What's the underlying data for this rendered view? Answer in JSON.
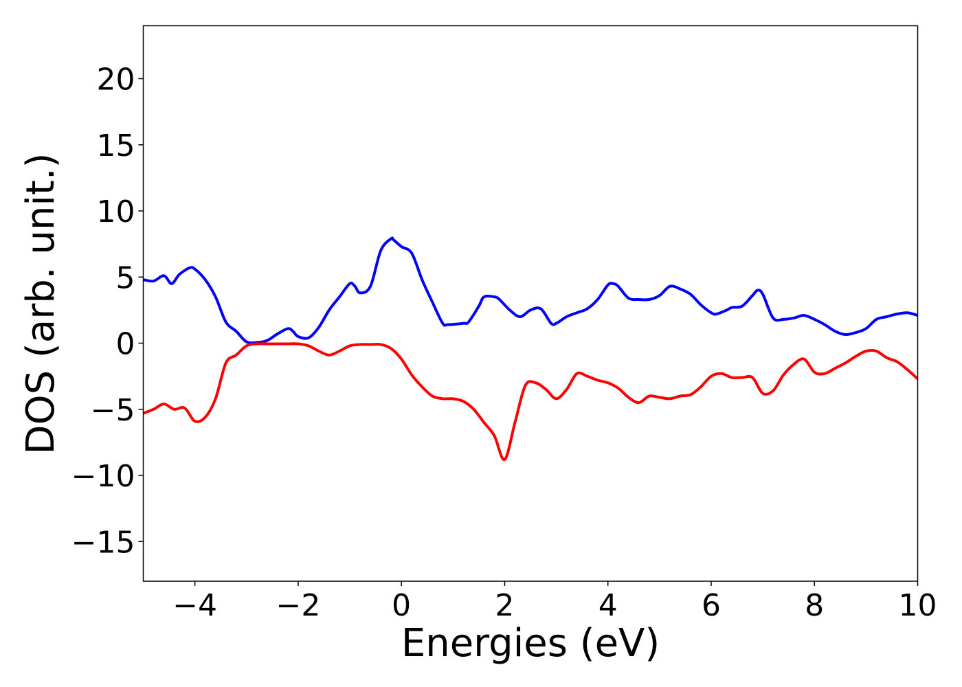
{
  "chart_data": {
    "type": "line",
    "title": "",
    "xlabel": "Energies (eV)",
    "ylabel": "DOS (arb. unit.)",
    "xlim": [
      -5,
      10
    ],
    "ylim": [
      -18,
      24
    ],
    "grid": false,
    "xticks": [
      -4,
      -2,
      0,
      2,
      4,
      6,
      8,
      10
    ],
    "xtick_labels": [
      "−4",
      "−2",
      "0",
      "2",
      "4",
      "6",
      "8",
      "10"
    ],
    "yticks": [
      -15,
      -10,
      -5,
      0,
      5,
      10,
      15,
      20
    ],
    "ytick_labels": [
      "−15",
      "−10",
      "−5",
      "0",
      "5",
      "10",
      "15",
      "20"
    ],
    "series": [
      {
        "color": "#0000ff",
        "x": [
          -5.0,
          -4.8,
          -4.6,
          -4.45,
          -4.3,
          -4.1,
          -4.0,
          -3.8,
          -3.6,
          -3.4,
          -3.2,
          -3.0,
          -2.8,
          -2.6,
          -2.4,
          -2.2,
          -2.1,
          -2.0,
          -1.8,
          -1.6,
          -1.4,
          -1.2,
          -1.0,
          -0.9,
          -0.8,
          -0.6,
          -0.4,
          -0.2,
          -0.15,
          0.0,
          0.2,
          0.4,
          0.6,
          0.8,
          0.9,
          1.2,
          1.3,
          1.5,
          1.6,
          1.8,
          1.9,
          2.1,
          2.3,
          2.5,
          2.7,
          2.9,
          3.0,
          3.2,
          3.4,
          3.6,
          3.8,
          4.0,
          4.1,
          4.2,
          4.4,
          4.6,
          4.8,
          5.0,
          5.2,
          5.4,
          5.6,
          5.8,
          6.0,
          6.1,
          6.3,
          6.4,
          6.6,
          6.8,
          6.9,
          7.0,
          7.2,
          7.4,
          7.6,
          7.8,
          8.0,
          8.2,
          8.4,
          8.6,
          8.8,
          9.0,
          9.2,
          9.4,
          9.6,
          9.8,
          10.0
        ],
        "y": [
          4.8,
          4.7,
          5.1,
          4.5,
          5.2,
          5.7,
          5.6,
          4.8,
          3.5,
          1.6,
          0.9,
          0.1,
          0.05,
          0.2,
          0.7,
          1.1,
          0.9,
          0.5,
          0.4,
          1.2,
          2.5,
          3.5,
          4.5,
          4.3,
          3.8,
          4.3,
          7.0,
          7.9,
          7.8,
          7.3,
          6.8,
          4.8,
          3.1,
          1.5,
          1.4,
          1.5,
          1.6,
          2.8,
          3.5,
          3.5,
          3.3,
          2.5,
          2.0,
          2.5,
          2.6,
          1.5,
          1.5,
          2.0,
          2.3,
          2.6,
          3.3,
          4.4,
          4.5,
          4.3,
          3.4,
          3.3,
          3.3,
          3.6,
          4.3,
          4.1,
          3.7,
          2.9,
          2.3,
          2.2,
          2.5,
          2.7,
          2.8,
          3.6,
          4.0,
          3.7,
          1.9,
          1.8,
          1.9,
          2.1,
          1.8,
          1.4,
          0.9,
          0.65,
          0.8,
          1.1,
          1.8,
          2.0,
          2.2,
          2.3,
          2.1
        ]
      },
      {
        "color": "#ff0000",
        "x": [
          -5.0,
          -4.8,
          -4.6,
          -4.4,
          -4.2,
          -4.0,
          -3.8,
          -3.6,
          -3.4,
          -3.2,
          -3.0,
          -2.8,
          -2.6,
          -2.4,
          -2.2,
          -2.0,
          -1.8,
          -1.6,
          -1.4,
          -1.2,
          -1.0,
          -0.8,
          -0.6,
          -0.4,
          -0.2,
          0.0,
          0.2,
          0.4,
          0.6,
          0.8,
          1.0,
          1.2,
          1.4,
          1.6,
          1.8,
          2.0,
          2.2,
          2.4,
          2.6,
          2.8,
          3.0,
          3.2,
          3.4,
          3.6,
          3.8,
          4.0,
          4.2,
          4.4,
          4.6,
          4.8,
          5.0,
          5.2,
          5.4,
          5.6,
          5.8,
          6.0,
          6.2,
          6.4,
          6.6,
          6.8,
          7.0,
          7.2,
          7.4,
          7.6,
          7.8,
          8.0,
          8.2,
          8.4,
          8.6,
          8.8,
          9.0,
          9.2,
          9.4,
          9.6,
          9.8,
          10.0
        ],
        "y": [
          -5.3,
          -5.0,
          -4.6,
          -5.0,
          -4.9,
          -5.9,
          -5.6,
          -4.2,
          -1.5,
          -0.9,
          -0.2,
          -0.05,
          -0.05,
          -0.05,
          -0.05,
          -0.05,
          -0.2,
          -0.6,
          -0.9,
          -0.6,
          -0.2,
          -0.1,
          -0.1,
          -0.1,
          -0.4,
          -1.2,
          -2.4,
          -3.3,
          -4.0,
          -4.2,
          -4.2,
          -4.4,
          -5.0,
          -6.0,
          -7.0,
          -8.8,
          -6.0,
          -3.2,
          -3.0,
          -3.5,
          -4.2,
          -3.5,
          -2.3,
          -2.5,
          -2.8,
          -3.0,
          -3.4,
          -4.1,
          -4.5,
          -4.0,
          -4.1,
          -4.2,
          -4.0,
          -3.9,
          -3.3,
          -2.5,
          -2.3,
          -2.6,
          -2.6,
          -2.6,
          -3.8,
          -3.6,
          -2.4,
          -1.6,
          -1.2,
          -2.2,
          -2.3,
          -1.9,
          -1.5,
          -1.0,
          -0.6,
          -0.6,
          -1.1,
          -1.4,
          -2.0,
          -2.7
        ]
      }
    ]
  }
}
